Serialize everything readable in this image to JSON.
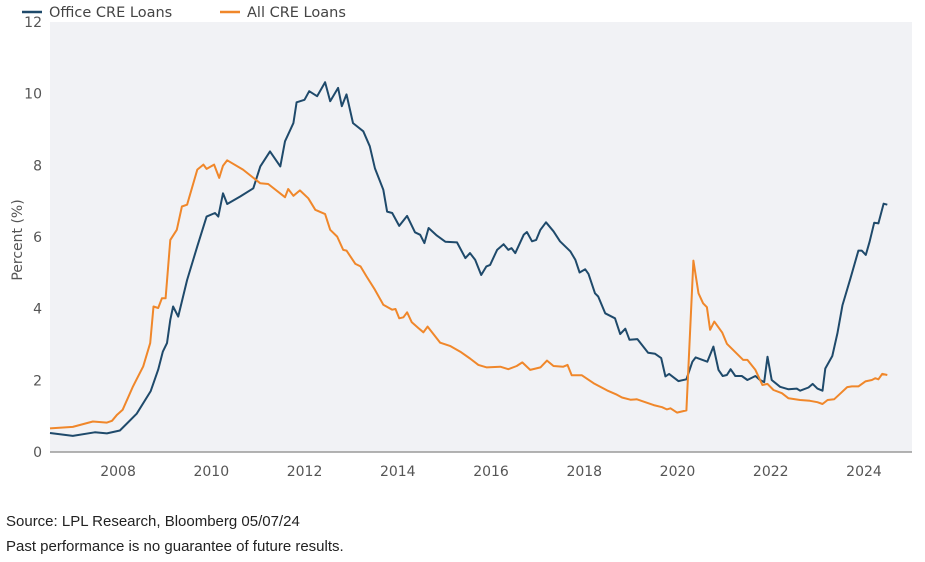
{
  "chart_data": {
    "type": "line",
    "title": "",
    "xlabel": "",
    "ylabel": "Percent (%)",
    "xlim": [
      2006.54,
      2025.03
    ],
    "ylim": [
      0,
      12
    ],
    "xticks": [
      2008,
      2010,
      2012,
      2014,
      2016,
      2018,
      2020,
      2022,
      2024
    ],
    "yticks": [
      0,
      2,
      4,
      6,
      8,
      10,
      12
    ],
    "grid": false,
    "legend": "top-left",
    "series": [
      {
        "name": "Office CRE Loans",
        "color": "#1f4a6b",
        "points": [
          [
            2006.54,
            0.53
          ],
          [
            2007.03,
            0.45
          ],
          [
            2007.5,
            0.55
          ],
          [
            2007.76,
            0.52
          ],
          [
            2008.04,
            0.6
          ],
          [
            2008.4,
            1.07
          ],
          [
            2008.7,
            1.7
          ],
          [
            2008.86,
            2.3
          ],
          [
            2008.96,
            2.8
          ],
          [
            2009.05,
            3.04
          ],
          [
            2009.12,
            3.69
          ],
          [
            2009.18,
            4.06
          ],
          [
            2009.29,
            3.78
          ],
          [
            2009.48,
            4.8
          ],
          [
            2009.7,
            5.74
          ],
          [
            2009.9,
            6.57
          ],
          [
            2010.08,
            6.67
          ],
          [
            2010.15,
            6.57
          ],
          [
            2010.25,
            7.22
          ],
          [
            2010.34,
            6.92
          ],
          [
            2010.62,
            7.13
          ],
          [
            2010.9,
            7.36
          ],
          [
            2011.05,
            7.97
          ],
          [
            2011.26,
            8.39
          ],
          [
            2011.48,
            7.97
          ],
          [
            2011.58,
            8.67
          ],
          [
            2011.76,
            9.18
          ],
          [
            2011.83,
            9.76
          ],
          [
            2012.0,
            9.83
          ],
          [
            2012.1,
            10.07
          ],
          [
            2012.27,
            9.93
          ],
          [
            2012.44,
            10.32
          ],
          [
            2012.55,
            9.79
          ],
          [
            2012.72,
            10.16
          ],
          [
            2012.8,
            9.65
          ],
          [
            2012.9,
            9.98
          ],
          [
            2013.04,
            9.18
          ],
          [
            2013.26,
            8.95
          ],
          [
            2013.4,
            8.53
          ],
          [
            2013.51,
            7.92
          ],
          [
            2013.69,
            7.32
          ],
          [
            2013.77,
            6.71
          ],
          [
            2013.88,
            6.67
          ],
          [
            2014.03,
            6.31
          ],
          [
            2014.2,
            6.59
          ],
          [
            2014.37,
            6.13
          ],
          [
            2014.48,
            6.06
          ],
          [
            2014.57,
            5.83
          ],
          [
            2014.66,
            6.25
          ],
          [
            2014.84,
            6.04
          ],
          [
            2015.02,
            5.87
          ],
          [
            2015.27,
            5.85
          ],
          [
            2015.45,
            5.41
          ],
          [
            2015.55,
            5.55
          ],
          [
            2015.66,
            5.36
          ],
          [
            2015.79,
            4.94
          ],
          [
            2015.9,
            5.18
          ],
          [
            2015.98,
            5.22
          ],
          [
            2016.13,
            5.64
          ],
          [
            2016.27,
            5.8
          ],
          [
            2016.37,
            5.64
          ],
          [
            2016.44,
            5.69
          ],
          [
            2016.52,
            5.55
          ],
          [
            2016.7,
            6.06
          ],
          [
            2016.77,
            6.14
          ],
          [
            2016.88,
            5.88
          ],
          [
            2016.97,
            5.92
          ],
          [
            2017.06,
            6.2
          ],
          [
            2017.18,
            6.41
          ],
          [
            2017.34,
            6.16
          ],
          [
            2017.48,
            5.88
          ],
          [
            2017.7,
            5.6
          ],
          [
            2017.81,
            5.36
          ],
          [
            2017.9,
            5.01
          ],
          [
            2018.02,
            5.1
          ],
          [
            2018.09,
            4.97
          ],
          [
            2018.23,
            4.43
          ],
          [
            2018.3,
            4.34
          ],
          [
            2018.45,
            3.87
          ],
          [
            2018.66,
            3.73
          ],
          [
            2018.77,
            3.29
          ],
          [
            2018.88,
            3.44
          ],
          [
            2018.97,
            3.13
          ],
          [
            2019.14,
            3.15
          ],
          [
            2019.37,
            2.77
          ],
          [
            2019.52,
            2.74
          ],
          [
            2019.65,
            2.62
          ],
          [
            2019.74,
            2.11
          ],
          [
            2019.82,
            2.18
          ],
          [
            2020.02,
            1.98
          ],
          [
            2020.19,
            2.03
          ],
          [
            2020.32,
            2.52
          ],
          [
            2020.39,
            2.64
          ],
          [
            2020.64,
            2.52
          ],
          [
            2020.77,
            2.94
          ],
          [
            2020.88,
            2.29
          ],
          [
            2020.97,
            2.12
          ],
          [
            2021.06,
            2.15
          ],
          [
            2021.14,
            2.31
          ],
          [
            2021.24,
            2.12
          ],
          [
            2021.38,
            2.12
          ],
          [
            2021.5,
            2.01
          ],
          [
            2021.67,
            2.12
          ],
          [
            2021.77,
            2.01
          ],
          [
            2021.86,
            1.95
          ],
          [
            2021.93,
            2.66
          ],
          [
            2022.02,
            2.01
          ],
          [
            2022.2,
            1.82
          ],
          [
            2022.38,
            1.75
          ],
          [
            2022.56,
            1.77
          ],
          [
            2022.63,
            1.71
          ],
          [
            2022.81,
            1.8
          ],
          [
            2022.9,
            1.9
          ],
          [
            2023.0,
            1.77
          ],
          [
            2023.11,
            1.71
          ],
          [
            2023.17,
            2.33
          ],
          [
            2023.32,
            2.68
          ],
          [
            2023.43,
            3.31
          ],
          [
            2023.54,
            4.1
          ],
          [
            2023.71,
            4.85
          ],
          [
            2023.88,
            5.62
          ],
          [
            2023.95,
            5.62
          ],
          [
            2024.04,
            5.5
          ],
          [
            2024.12,
            5.87
          ],
          [
            2024.22,
            6.4
          ],
          [
            2024.31,
            6.38
          ],
          [
            2024.42,
            6.93
          ],
          [
            2024.5,
            6.9
          ]
        ]
      },
      {
        "name": "All CRE Loans",
        "color": "#f0872a",
        "points": [
          [
            2006.54,
            0.66
          ],
          [
            2007.03,
            0.7
          ],
          [
            2007.46,
            0.85
          ],
          [
            2007.76,
            0.82
          ],
          [
            2007.87,
            0.87
          ],
          [
            2007.98,
            1.04
          ],
          [
            2008.1,
            1.18
          ],
          [
            2008.32,
            1.83
          ],
          [
            2008.54,
            2.39
          ],
          [
            2008.69,
            3.04
          ],
          [
            2008.76,
            4.06
          ],
          [
            2008.86,
            4.02
          ],
          [
            2008.94,
            4.29
          ],
          [
            2009.02,
            4.29
          ],
          [
            2009.12,
            5.92
          ],
          [
            2009.26,
            6.2
          ],
          [
            2009.37,
            6.85
          ],
          [
            2009.48,
            6.9
          ],
          [
            2009.7,
            7.88
          ],
          [
            2009.83,
            8.02
          ],
          [
            2009.9,
            7.9
          ],
          [
            2010.06,
            8.02
          ],
          [
            2010.17,
            7.65
          ],
          [
            2010.25,
            7.99
          ],
          [
            2010.34,
            8.14
          ],
          [
            2010.68,
            7.88
          ],
          [
            2011.05,
            7.5
          ],
          [
            2011.22,
            7.48
          ],
          [
            2011.58,
            7.11
          ],
          [
            2011.65,
            7.34
          ],
          [
            2011.76,
            7.15
          ],
          [
            2011.9,
            7.3
          ],
          [
            2012.08,
            7.08
          ],
          [
            2012.23,
            6.76
          ],
          [
            2012.44,
            6.64
          ],
          [
            2012.55,
            6.2
          ],
          [
            2012.7,
            6.01
          ],
          [
            2012.83,
            5.64
          ],
          [
            2012.9,
            5.62
          ],
          [
            2013.09,
            5.25
          ],
          [
            2013.2,
            5.18
          ],
          [
            2013.33,
            4.9
          ],
          [
            2013.51,
            4.53
          ],
          [
            2013.69,
            4.11
          ],
          [
            2013.88,
            3.97
          ],
          [
            2013.95,
            3.99
          ],
          [
            2014.03,
            3.73
          ],
          [
            2014.12,
            3.76
          ],
          [
            2014.2,
            3.9
          ],
          [
            2014.3,
            3.62
          ],
          [
            2014.44,
            3.46
          ],
          [
            2014.55,
            3.34
          ],
          [
            2014.64,
            3.5
          ],
          [
            2014.91,
            3.05
          ],
          [
            2015.12,
            2.96
          ],
          [
            2015.34,
            2.8
          ],
          [
            2015.55,
            2.61
          ],
          [
            2015.73,
            2.43
          ],
          [
            2015.91,
            2.36
          ],
          [
            2016.2,
            2.38
          ],
          [
            2016.37,
            2.31
          ],
          [
            2016.55,
            2.4
          ],
          [
            2016.67,
            2.5
          ],
          [
            2016.84,
            2.29
          ],
          [
            2017.06,
            2.36
          ],
          [
            2017.2,
            2.55
          ],
          [
            2017.34,
            2.4
          ],
          [
            2017.55,
            2.38
          ],
          [
            2017.64,
            2.43
          ],
          [
            2017.73,
            2.14
          ],
          [
            2017.95,
            2.14
          ],
          [
            2018.2,
            1.92
          ],
          [
            2018.49,
            1.72
          ],
          [
            2018.7,
            1.6
          ],
          [
            2018.81,
            1.52
          ],
          [
            2018.99,
            1.46
          ],
          [
            2019.13,
            1.47
          ],
          [
            2019.49,
            1.31
          ],
          [
            2019.67,
            1.25
          ],
          [
            2019.77,
            1.19
          ],
          [
            2019.85,
            1.22
          ],
          [
            2019.99,
            1.1
          ],
          [
            2020.19,
            1.16
          ],
          [
            2020.34,
            5.34
          ],
          [
            2020.45,
            4.43
          ],
          [
            2020.55,
            4.15
          ],
          [
            2020.63,
            4.04
          ],
          [
            2020.7,
            3.41
          ],
          [
            2020.79,
            3.64
          ],
          [
            2020.96,
            3.33
          ],
          [
            2021.06,
            3.02
          ],
          [
            2021.41,
            2.57
          ],
          [
            2021.5,
            2.57
          ],
          [
            2021.67,
            2.29
          ],
          [
            2021.82,
            1.87
          ],
          [
            2021.93,
            1.9
          ],
          [
            2022.06,
            1.73
          ],
          [
            2022.24,
            1.64
          ],
          [
            2022.38,
            1.5
          ],
          [
            2022.63,
            1.45
          ],
          [
            2022.84,
            1.43
          ],
          [
            2023.0,
            1.39
          ],
          [
            2023.11,
            1.34
          ],
          [
            2023.22,
            1.45
          ],
          [
            2023.36,
            1.47
          ],
          [
            2023.5,
            1.64
          ],
          [
            2023.64,
            1.81
          ],
          [
            2023.74,
            1.83
          ],
          [
            2023.88,
            1.83
          ],
          [
            2024.03,
            1.97
          ],
          [
            2024.17,
            2.01
          ],
          [
            2024.24,
            2.06
          ],
          [
            2024.31,
            2.03
          ],
          [
            2024.39,
            2.18
          ],
          [
            2024.5,
            2.15
          ]
        ]
      }
    ],
    "source": "Source: LPL Research, Bloomberg 05/07/24",
    "disclaimer": "Past performance is no guarantee of future results."
  }
}
